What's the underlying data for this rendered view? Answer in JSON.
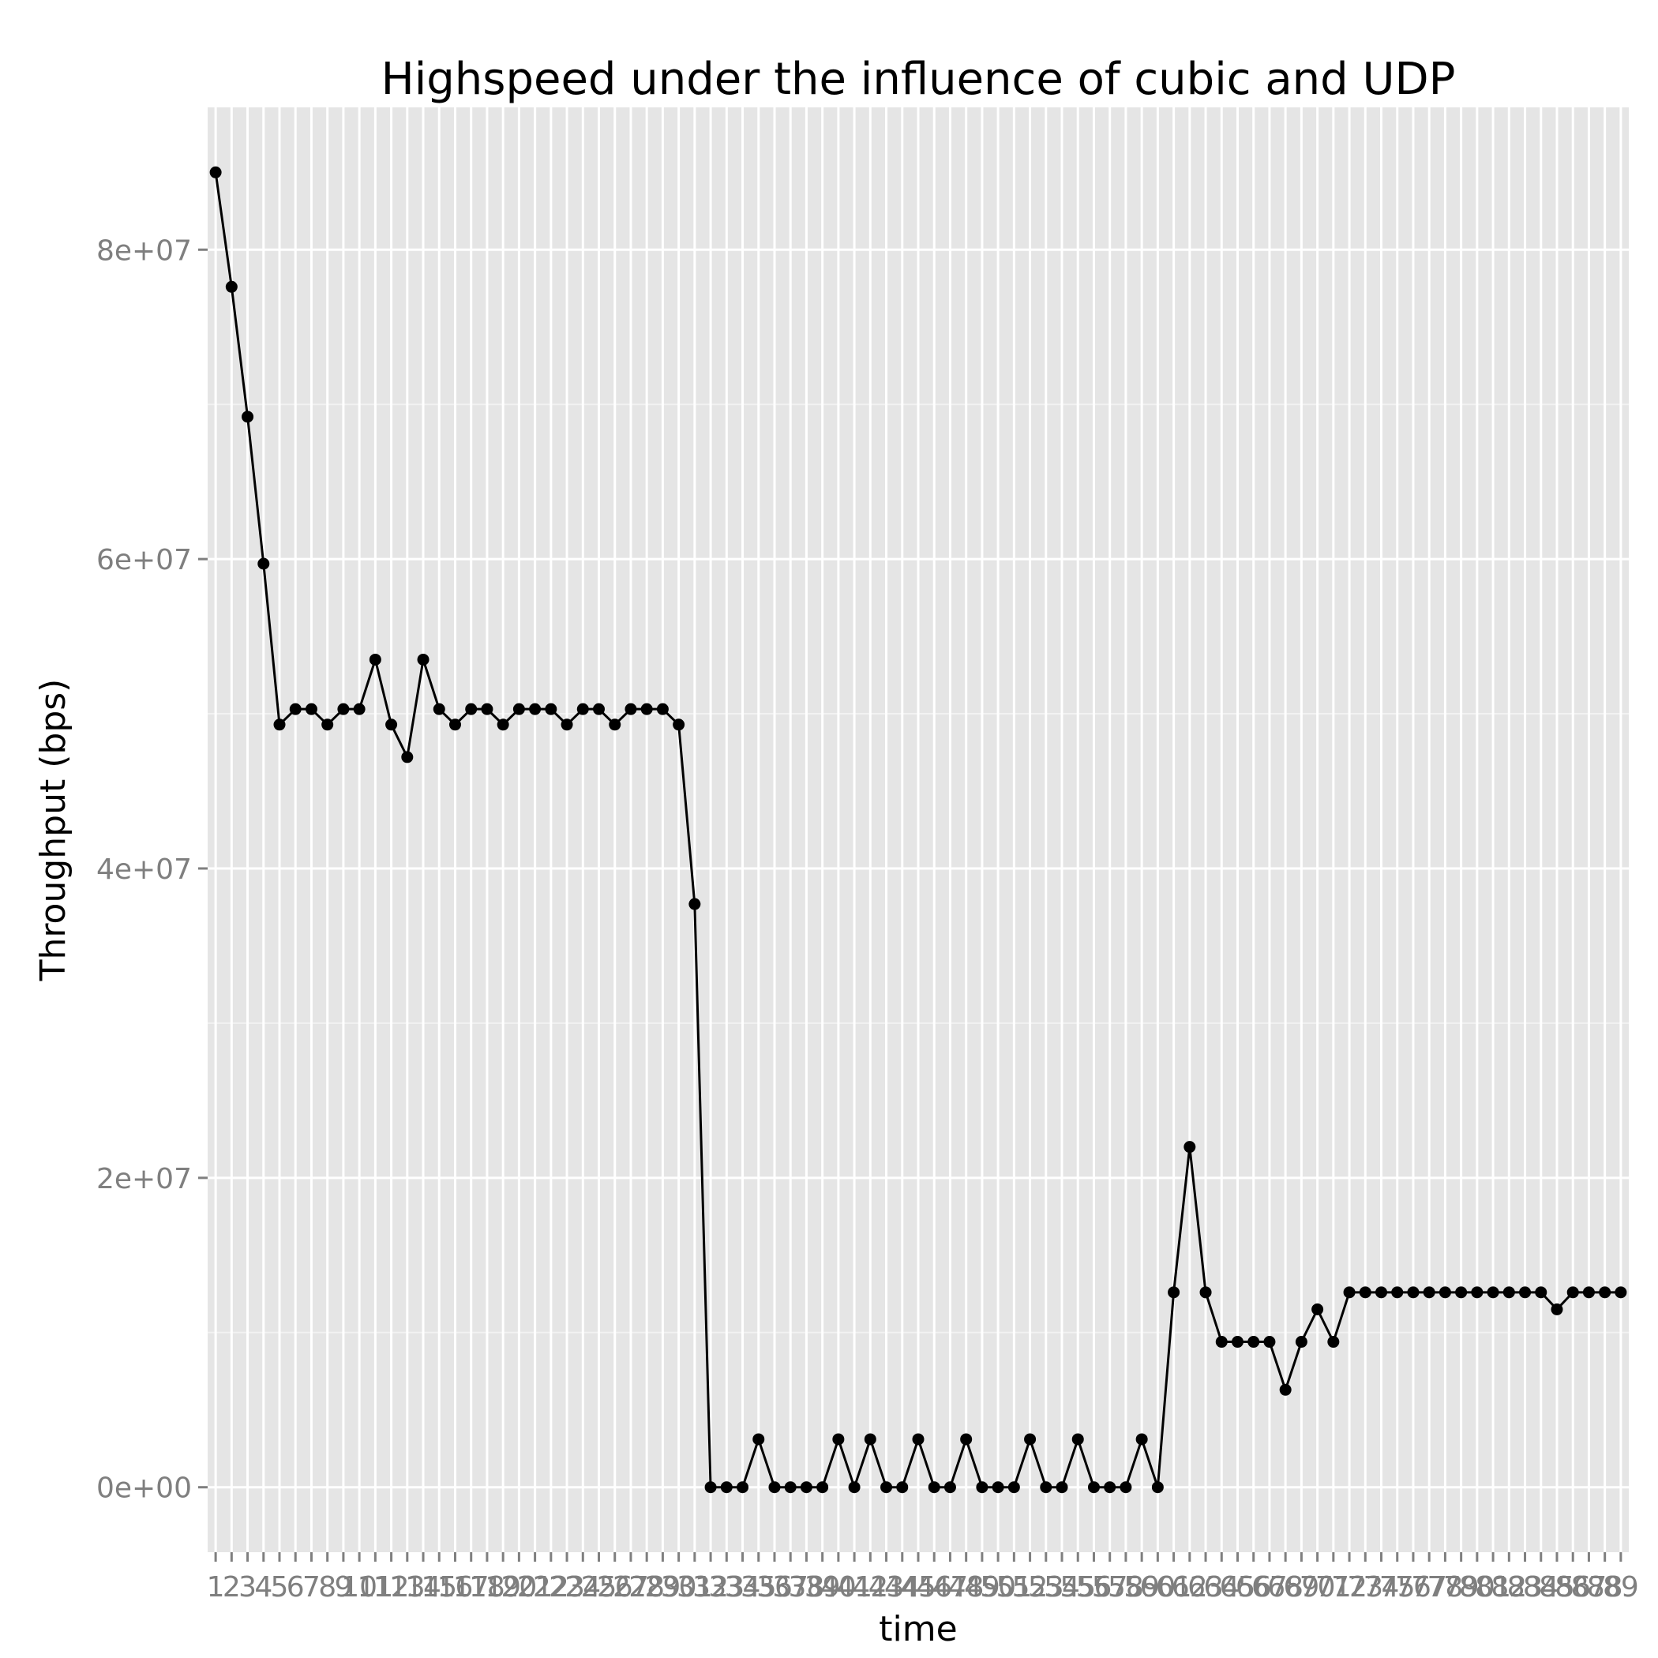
{
  "chart_data": {
    "type": "line",
    "title": "Highspeed under the influence of cubic and UDP",
    "xlabel": "time",
    "ylabel": "Throughput (bps)",
    "x": [
      1,
      2,
      3,
      4,
      5,
      6,
      7,
      8,
      9,
      10,
      11,
      12,
      13,
      14,
      15,
      16,
      17,
      18,
      19,
      20,
      21,
      22,
      23,
      24,
      25,
      26,
      27,
      28,
      29,
      30,
      31,
      32,
      33,
      34,
      35,
      36,
      37,
      38,
      39,
      40,
      41,
      42,
      43,
      44,
      45,
      46,
      47,
      48,
      49,
      50,
      51,
      52,
      53,
      54,
      55,
      56,
      57,
      58,
      59,
      60,
      61,
      62,
      63,
      64,
      65,
      66,
      67,
      68,
      69,
      70,
      71,
      72,
      73,
      74,
      75,
      76,
      77,
      78,
      79,
      80,
      81,
      82,
      83,
      84,
      85,
      86,
      87,
      88,
      89
    ],
    "xticks": [
      "1",
      "2",
      "3",
      "4",
      "5",
      "6",
      "7",
      "8",
      "9",
      "10",
      "11",
      "12",
      "13",
      "14",
      "15",
      "16",
      "17",
      "18",
      "19",
      "20",
      "21",
      "22",
      "23",
      "24",
      "25",
      "26",
      "27",
      "28",
      "29",
      "30",
      "31",
      "32",
      "33",
      "34",
      "35",
      "36",
      "37",
      "38",
      "39",
      "40",
      "41",
      "42",
      "43",
      "44",
      "45",
      "46",
      "47",
      "48",
      "49",
      "50",
      "51",
      "52",
      "53",
      "54",
      "55",
      "56",
      "57",
      "58",
      "59",
      "60",
      "61",
      "62",
      "63",
      "64",
      "65",
      "66",
      "67",
      "68",
      "69",
      "70",
      "71",
      "72",
      "73",
      "74",
      "75",
      "76",
      "77",
      "78",
      "79",
      "80",
      "81",
      "82",
      "83",
      "84",
      "85",
      "86",
      "87",
      "88",
      "89"
    ],
    "y": [
      85000000,
      77600000,
      69200000,
      59700000,
      49300000,
      50300000,
      50300000,
      49300000,
      50300000,
      50300000,
      53500000,
      49300000,
      47200000,
      53500000,
      50300000,
      49300000,
      50300000,
      50300000,
      49300000,
      50300000,
      50300000,
      50300000,
      49300000,
      50300000,
      50300000,
      49300000,
      50300000,
      50300000,
      50300000,
      49300000,
      37700000,
      0,
      0,
      0,
      3100000,
      0,
      0,
      0,
      0,
      3100000,
      0,
      3100000,
      0,
      0,
      3100000,
      0,
      0,
      3100000,
      0,
      0,
      0,
      3100000,
      0,
      0,
      3100000,
      0,
      0,
      0,
      3100000,
      0,
      12600000,
      22000000,
      12600000,
      9400000,
      9400000,
      9400000,
      9400000,
      6300000,
      9400000,
      11500000,
      9400000,
      12600000,
      12600000,
      12600000,
      12600000,
      12600000,
      12600000,
      12600000,
      12600000,
      12600000,
      12600000,
      12600000,
      12600000,
      12600000,
      11500000,
      12600000,
      12600000,
      12600000,
      12600000
    ],
    "yticks": [
      0,
      20000000,
      40000000,
      60000000,
      80000000
    ],
    "ytick_labels": [
      "0e+00",
      "2e+07",
      "4e+07",
      "6e+07",
      "8e+07"
    ],
    "ylim": [
      -4200000,
      89200000
    ],
    "xlim": [
      0.5,
      89.5
    ],
    "grid": true,
    "legend": "none",
    "colors": {
      "panel_background": "#e5e5e5",
      "grid_major": "#ffffff",
      "grid_minor": "#f2f2f2",
      "line": "#000000",
      "tick_label": "#7f7f7f",
      "tick": "#7f7f7f"
    }
  }
}
